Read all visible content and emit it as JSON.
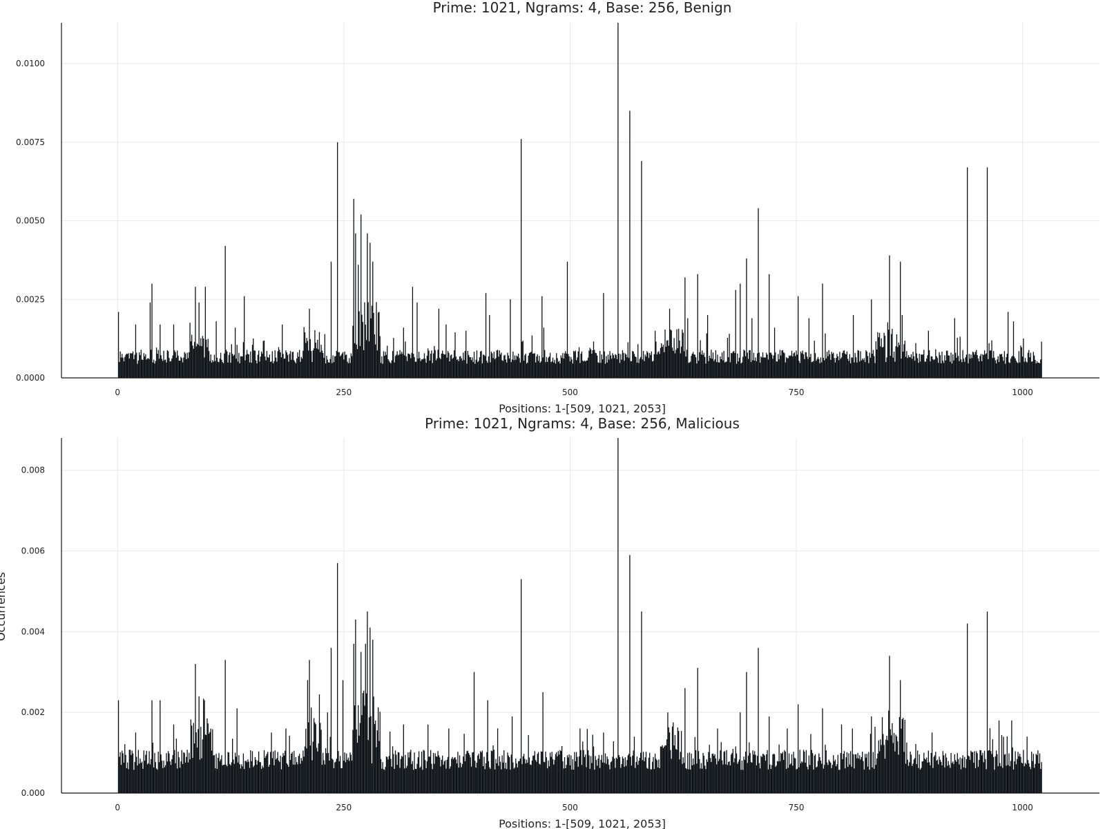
{
  "ylabel": "Occurrences",
  "chart_data": [
    {
      "type": "bar",
      "title": "Prime: 1021, Ngrams: 4, Base: 256, Benign",
      "xlabel": "Positions: 1-[509, 1021, 2053]",
      "ylabel": "",
      "xlim": [
        -62,
        1085
      ],
      "ylim": [
        0,
        0.0113
      ],
      "xticks": [
        0,
        250,
        500,
        750,
        1000
      ],
      "xtick_labels": [
        "0",
        "250",
        "500",
        "750",
        "1000"
      ],
      "yticks": [
        0,
        0.0025,
        0.005,
        0.0075,
        0.01
      ],
      "ytick_labels": [
        "0.0000",
        "0.0025",
        "0.0050",
        "0.0075",
        "0.0100"
      ],
      "grid": true,
      "legend": "none",
      "bar_color": "#0a0f14",
      "n_positions": 1021,
      "baseline_mean": 0.00065,
      "baseline_spread": 0.00045,
      "clusters": [
        {
          "from": 260,
          "to": 290,
          "level": 0.0019
        },
        {
          "from": 205,
          "to": 225,
          "level": 0.0009
        },
        {
          "from": 600,
          "to": 625,
          "level": 0.0009
        },
        {
          "from": 840,
          "to": 870,
          "level": 0.00085
        },
        {
          "from": 80,
          "to": 100,
          "level": 0.0008
        }
      ],
      "peaks": [
        {
          "x": 553,
          "y": 0.0113
        },
        {
          "x": 566,
          "y": 0.0085
        },
        {
          "x": 446,
          "y": 0.0076
        },
        {
          "x": 243,
          "y": 0.0075
        },
        {
          "x": 579,
          "y": 0.0069
        },
        {
          "x": 939,
          "y": 0.0067
        },
        {
          "x": 961,
          "y": 0.0067
        },
        {
          "x": 261,
          "y": 0.0057
        },
        {
          "x": 708,
          "y": 0.0054
        },
        {
          "x": 269,
          "y": 0.0052
        },
        {
          "x": 276,
          "y": 0.0046
        },
        {
          "x": 263,
          "y": 0.0046
        },
        {
          "x": 279,
          "y": 0.0043
        },
        {
          "x": 119,
          "y": 0.0042
        },
        {
          "x": 853,
          "y": 0.0039
        },
        {
          "x": 282,
          "y": 0.0037
        },
        {
          "x": 236,
          "y": 0.0037
        },
        {
          "x": 497,
          "y": 0.0037
        },
        {
          "x": 695,
          "y": 0.0038
        },
        {
          "x": 865,
          "y": 0.0037
        },
        {
          "x": 266,
          "y": 0.0036
        },
        {
          "x": 641,
          "y": 0.0033
        },
        {
          "x": 720,
          "y": 0.0033
        },
        {
          "x": 627,
          "y": 0.0032
        },
        {
          "x": 38,
          "y": 0.003
        },
        {
          "x": 86,
          "y": 0.0029
        },
        {
          "x": 97,
          "y": 0.0029
        },
        {
          "x": 326,
          "y": 0.0029
        },
        {
          "x": 688,
          "y": 0.003
        },
        {
          "x": 779,
          "y": 0.003
        },
        {
          "x": 683,
          "y": 0.0028
        },
        {
          "x": 407,
          "y": 0.0027
        },
        {
          "x": 537,
          "y": 0.0027
        },
        {
          "x": 752,
          "y": 0.0026
        },
        {
          "x": 469,
          "y": 0.0026
        },
        {
          "x": 140,
          "y": 0.0026
        },
        {
          "x": 833,
          "y": 0.0025
        },
        {
          "x": 434,
          "y": 0.0025
        },
        {
          "x": 36,
          "y": 0.0024
        },
        {
          "x": 90,
          "y": 0.0024
        },
        {
          "x": 331,
          "y": 0.0024
        },
        {
          "x": 984,
          "y": 0.0021
        },
        {
          "x": 1,
          "y": 0.0021
        },
        {
          "x": 212,
          "y": 0.0022
        },
        {
          "x": 289,
          "y": 0.0021
        },
        {
          "x": 610,
          "y": 0.0022
        },
        {
          "x": 355,
          "y": 0.0022
        },
        {
          "x": 925,
          "y": 0.0019
        },
        {
          "x": 867,
          "y": 0.002
        },
        {
          "x": 701,
          "y": 0.0019
        },
        {
          "x": 411,
          "y": 0.002
        },
        {
          "x": 630,
          "y": 0.0019
        },
        {
          "x": 813,
          "y": 0.002
        },
        {
          "x": 652,
          "y": 0.002
        },
        {
          "x": 764,
          "y": 0.0019
        },
        {
          "x": 990,
          "y": 0.0018
        },
        {
          "x": 20,
          "y": 0.0017
        },
        {
          "x": 47,
          "y": 0.0017
        },
        {
          "x": 62,
          "y": 0.0017
        },
        {
          "x": 109,
          "y": 0.0018
        },
        {
          "x": 130,
          "y": 0.0016
        },
        {
          "x": 182,
          "y": 0.0017
        },
        {
          "x": 316,
          "y": 0.0016
        },
        {
          "x": 363,
          "y": 0.0017
        },
        {
          "x": 385,
          "y": 0.0015
        },
        {
          "x": 471,
          "y": 0.0016
        },
        {
          "x": 594,
          "y": 0.0015
        },
        {
          "x": 726,
          "y": 0.0016
        },
        {
          "x": 896,
          "y": 0.0015
        }
      ]
    },
    {
      "type": "bar",
      "title": "Prime: 1021, Ngrams: 4, Base: 256, Malicious",
      "xlabel": "Positions: 1-[509, 1021, 2053]",
      "ylabel": "",
      "xlim": [
        -62,
        1085
      ],
      "ylim": [
        0,
        0.0088
      ],
      "xticks": [
        0,
        250,
        500,
        750,
        1000
      ],
      "xtick_labels": [
        "0",
        "250",
        "500",
        "750",
        "1000"
      ],
      "yticks": [
        0,
        0.002,
        0.004,
        0.006,
        0.008
      ],
      "ytick_labels": [
        "0.000",
        "0.002",
        "0.004",
        "0.006",
        "0.008"
      ],
      "grid": true,
      "legend": "none",
      "bar_color": "#0a0f14",
      "n_positions": 1021,
      "baseline_mean": 0.0008,
      "baseline_spread": 0.0005,
      "clusters": [
        {
          "from": 260,
          "to": 290,
          "level": 0.0017
        },
        {
          "from": 205,
          "to": 225,
          "level": 0.0011
        },
        {
          "from": 600,
          "to": 625,
          "level": 0.0009
        },
        {
          "from": 840,
          "to": 870,
          "level": 0.0009
        },
        {
          "from": 80,
          "to": 105,
          "level": 0.001
        }
      ],
      "peaks": [
        {
          "x": 553,
          "y": 0.0088
        },
        {
          "x": 566,
          "y": 0.0059
        },
        {
          "x": 243,
          "y": 0.0057
        },
        {
          "x": 446,
          "y": 0.0053
        },
        {
          "x": 579,
          "y": 0.0045
        },
        {
          "x": 961,
          "y": 0.0045
        },
        {
          "x": 276,
          "y": 0.0045
        },
        {
          "x": 263,
          "y": 0.0043
        },
        {
          "x": 939,
          "y": 0.0042
        },
        {
          "x": 279,
          "y": 0.0041
        },
        {
          "x": 282,
          "y": 0.0038
        },
        {
          "x": 274,
          "y": 0.0037
        },
        {
          "x": 261,
          "y": 0.0037
        },
        {
          "x": 708,
          "y": 0.0036
        },
        {
          "x": 236,
          "y": 0.0036
        },
        {
          "x": 269,
          "y": 0.0035
        },
        {
          "x": 853,
          "y": 0.0034
        },
        {
          "x": 212,
          "y": 0.0033
        },
        {
          "x": 119,
          "y": 0.0033
        },
        {
          "x": 86,
          "y": 0.0032
        },
        {
          "x": 641,
          "y": 0.0031
        },
        {
          "x": 695,
          "y": 0.003
        },
        {
          "x": 394,
          "y": 0.003
        },
        {
          "x": 249,
          "y": 0.0028
        },
        {
          "x": 210,
          "y": 0.0028
        },
        {
          "x": 865,
          "y": 0.0028
        },
        {
          "x": 627,
          "y": 0.0026
        },
        {
          "x": 470,
          "y": 0.0025
        },
        {
          "x": 90,
          "y": 0.0024
        },
        {
          "x": 96,
          "y": 0.0023
        },
        {
          "x": 38,
          "y": 0.0023
        },
        {
          "x": 47,
          "y": 0.0023
        },
        {
          "x": 1,
          "y": 0.0023
        },
        {
          "x": 409,
          "y": 0.0023
        },
        {
          "x": 752,
          "y": 0.0022
        },
        {
          "x": 779,
          "y": 0.0021
        },
        {
          "x": 132,
          "y": 0.0021
        },
        {
          "x": 232,
          "y": 0.002
        },
        {
          "x": 688,
          "y": 0.002
        },
        {
          "x": 608,
          "y": 0.002
        },
        {
          "x": 720,
          "y": 0.0019
        },
        {
          "x": 833,
          "y": 0.0019
        },
        {
          "x": 436,
          "y": 0.0019
        },
        {
          "x": 988,
          "y": 0.0018
        },
        {
          "x": 974,
          "y": 0.0018
        },
        {
          "x": 20,
          "y": 0.0015
        },
        {
          "x": 62,
          "y": 0.0017
        },
        {
          "x": 170,
          "y": 0.0015
        },
        {
          "x": 186,
          "y": 0.0016
        },
        {
          "x": 316,
          "y": 0.0017
        },
        {
          "x": 343,
          "y": 0.0017
        },
        {
          "x": 366,
          "y": 0.0016
        },
        {
          "x": 511,
          "y": 0.0016
        },
        {
          "x": 537,
          "y": 0.0015
        },
        {
          "x": 663,
          "y": 0.0016
        },
        {
          "x": 740,
          "y": 0.0016
        },
        {
          "x": 800,
          "y": 0.0017
        },
        {
          "x": 812,
          "y": 0.0016
        },
        {
          "x": 900,
          "y": 0.0015
        },
        {
          "x": 1005,
          "y": 0.0014
        }
      ]
    }
  ]
}
